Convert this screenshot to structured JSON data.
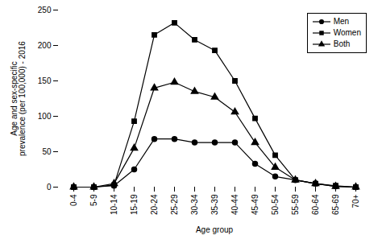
{
  "chart_data": {
    "type": "line",
    "categories": [
      "0-4",
      "5-9",
      "10-14",
      "15-19",
      "20-24",
      "25-29",
      "30-34",
      "35-39",
      "40-44",
      "45-49",
      "50-54",
      "55-59",
      "60-64",
      "65-69",
      "70+"
    ],
    "series": [
      {
        "name": "Men",
        "color": "#000000",
        "marker": "circle",
        "values": [
          0,
          0,
          2,
          25,
          68,
          68,
          63,
          63,
          63,
          33,
          15,
          10,
          5,
          1,
          0
        ]
      },
      {
        "name": "Women",
        "color": "#000000",
        "marker": "square",
        "values": [
          0,
          0,
          3,
          93,
          215,
          232,
          208,
          193,
          150,
          97,
          45,
          10,
          5,
          2,
          0
        ]
      },
      {
        "name": "Both",
        "color": "#000000",
        "marker": "triangle",
        "values": [
          0,
          0,
          5,
          55,
          140,
          148,
          135,
          127,
          106,
          63,
          28,
          10,
          5,
          1,
          0
        ]
      }
    ],
    "xlabel": "Age group",
    "ylabel": "Age and sex-specific\nprevalence (per 100,000) - 2016",
    "ylim": [
      0,
      250
    ],
    "yticks": [
      0,
      50,
      100,
      150,
      200,
      250
    ],
    "legend": "upper right",
    "grid": false
  }
}
